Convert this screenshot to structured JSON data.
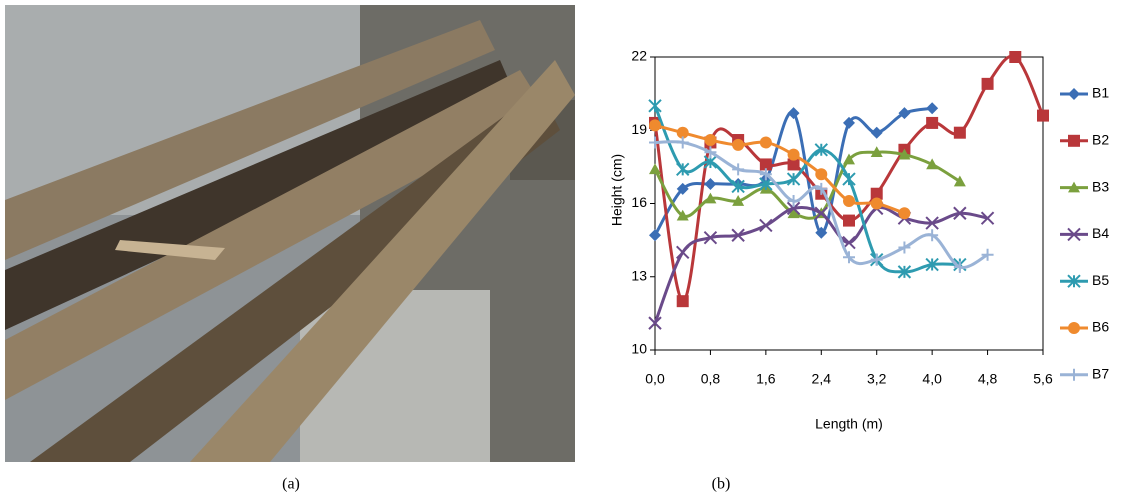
{
  "caption_a": "(a)",
  "chart_data": {
    "type": "line",
    "caption": "(b)",
    "x_label": "Length (m)",
    "y_label": "Height (cm)",
    "x": [
      0,
      0.4,
      0.8,
      1.2,
      1.6,
      2.0,
      2.4,
      2.8,
      3.2,
      3.6,
      4.0,
      4.4,
      4.8,
      5.2,
      5.6
    ],
    "xlim": [
      0,
      5.6
    ],
    "xticks": [
      {
        "value": 0,
        "label": "0,0"
      },
      {
        "value": 0.8,
        "label": "0,8"
      },
      {
        "value": 1.6,
        "label": "1,6"
      },
      {
        "value": 2.4,
        "label": "2,4"
      },
      {
        "value": 3.2,
        "label": "3,2"
      },
      {
        "value": 4.0,
        "label": "4,0"
      },
      {
        "value": 4.8,
        "label": "4,8"
      },
      {
        "value": 5.6,
        "label": "5,6"
      }
    ],
    "ylim": [
      10,
      22
    ],
    "yticks": [
      10,
      13,
      16,
      19,
      22
    ],
    "smooth": true,
    "legend": "right",
    "series": [
      {
        "name": "B1",
        "color": "#3b6eb5",
        "marker": "diamond",
        "values": [
          14.7,
          16.6,
          16.8,
          16.8,
          17.0,
          19.7,
          14.8,
          19.3,
          18.9,
          19.7,
          19.9,
          null,
          null,
          null,
          null
        ]
      },
      {
        "name": "B2",
        "color": "#b9373a",
        "marker": "square",
        "values": [
          19.3,
          12.0,
          18.5,
          18.6,
          17.6,
          17.6,
          16.4,
          15.3,
          16.4,
          18.2,
          19.3,
          18.9,
          20.9,
          22.0,
          19.6
        ]
      },
      {
        "name": "B3",
        "color": "#7ba03e",
        "marker": "triangle",
        "values": [
          17.4,
          15.5,
          16.2,
          16.1,
          16.6,
          15.6,
          15.6,
          17.8,
          18.1,
          18.0,
          17.6,
          16.9,
          null,
          null,
          null
        ]
      },
      {
        "name": "B4",
        "color": "#6a4a8a",
        "marker": "cross",
        "values": [
          11.1,
          14.0,
          14.6,
          14.7,
          15.1,
          15.8,
          15.6,
          14.4,
          15.8,
          15.4,
          15.2,
          15.6,
          15.4,
          null,
          null
        ]
      },
      {
        "name": "B5",
        "color": "#2e9bb0",
        "marker": "star",
        "values": [
          20.0,
          17.4,
          17.7,
          16.7,
          16.8,
          17.0,
          18.2,
          17.0,
          13.7,
          13.2,
          13.5,
          13.5,
          null,
          null,
          null
        ]
      },
      {
        "name": "B6",
        "color": "#ef8a2e",
        "marker": "circle",
        "values": [
          19.2,
          18.9,
          18.6,
          18.4,
          18.5,
          18.0,
          17.2,
          16.1,
          16.0,
          15.6,
          null,
          null,
          null,
          null,
          null
        ]
      },
      {
        "name": "B7",
        "color": "#9ab3d6",
        "marker": "plus",
        "values": [
          18.5,
          18.5,
          18.1,
          17.4,
          17.2,
          16.1,
          16.6,
          13.8,
          13.7,
          14.2,
          14.7,
          13.4,
          13.9,
          null,
          null
        ]
      }
    ]
  }
}
